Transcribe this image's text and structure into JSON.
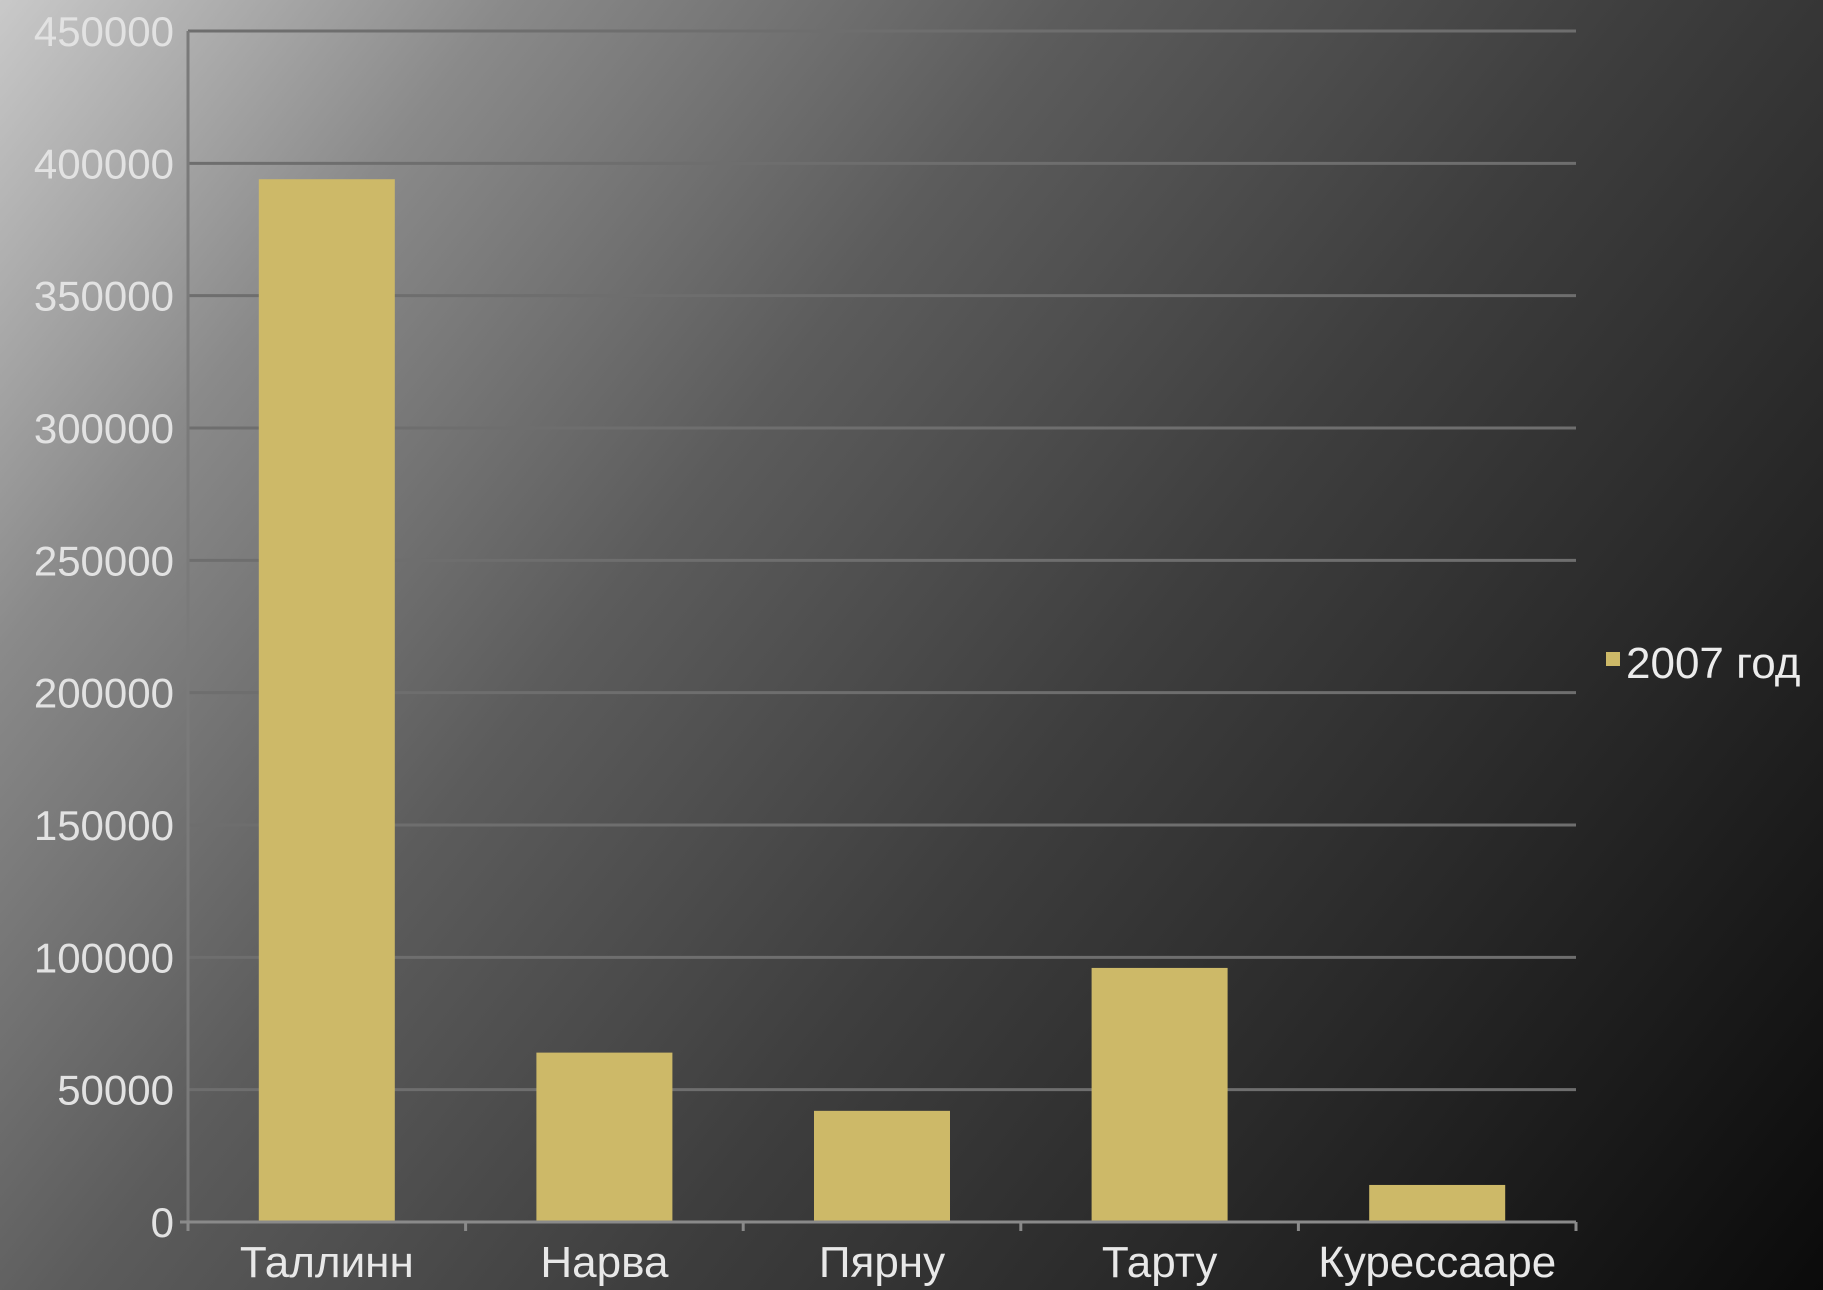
{
  "chart_data": {
    "type": "bar",
    "categories": [
      "Таллинн",
      "Нарва",
      "Пярну",
      "Тарту",
      "Курессааре"
    ],
    "series": [
      {
        "name": "2007 год",
        "values": [
          394000,
          64000,
          42000,
          96000,
          14000
        ]
      }
    ],
    "yticks": [
      "0",
      "50000",
      "100000",
      "150000",
      "200000",
      "250000",
      "300000",
      "350000",
      "400000",
      "450000"
    ],
    "ylim": [
      0,
      450000
    ],
    "ystep": 50000,
    "grid": true,
    "legend": "right",
    "bar_color": "#cdb968",
    "grid_color": "#6e6e6e"
  }
}
